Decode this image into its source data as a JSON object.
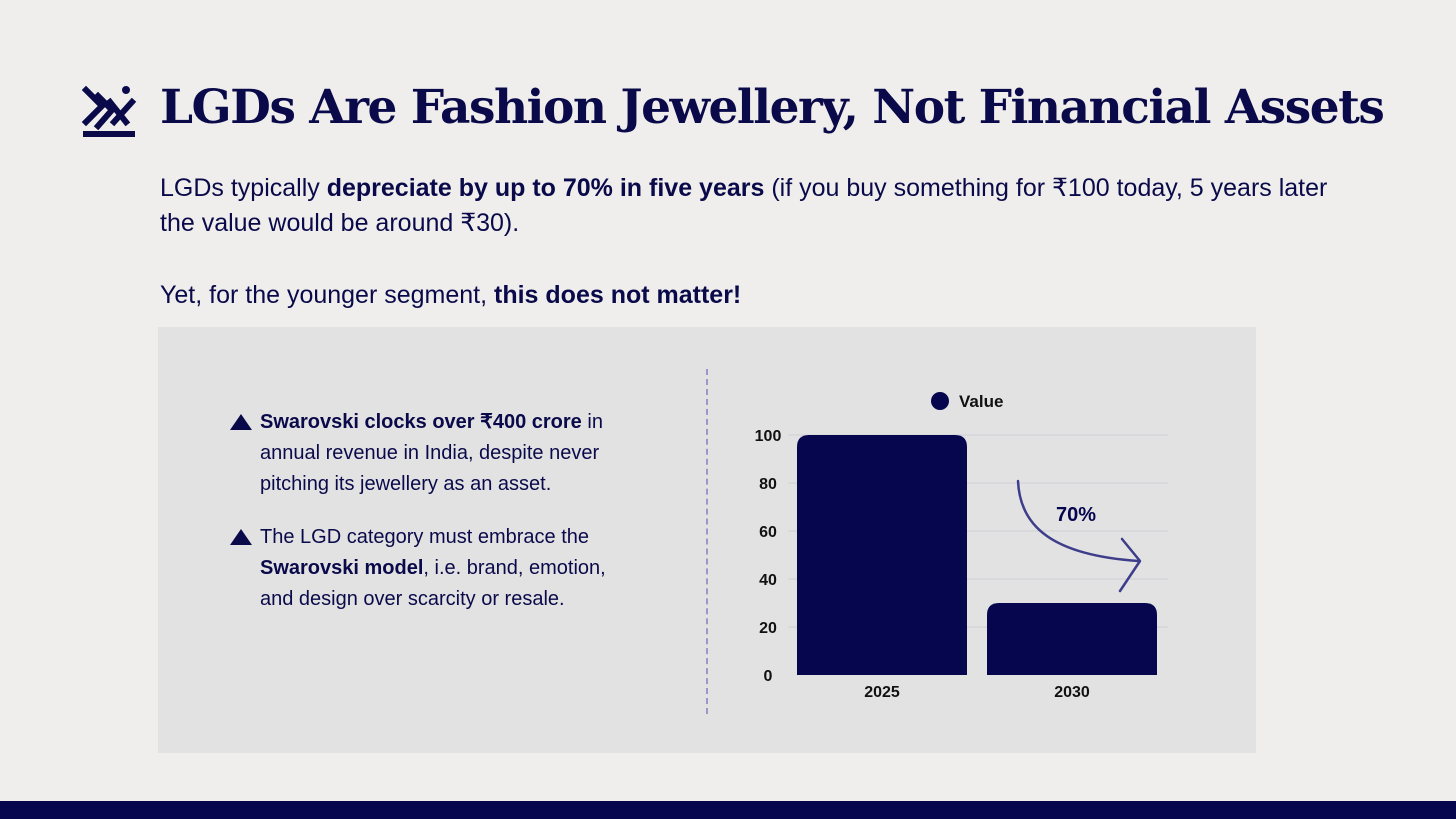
{
  "slide": {
    "title": "LGDs Are Fashion Jewellery, Not Financial Assets",
    "intro": {
      "part1": "LGDs typically ",
      "bold1": "depreciate by up to 70% in five years",
      "part2": " (if you buy something for ₹100 today, 5 years later the value would be around ₹30)."
    },
    "intro2": {
      "part1": "Yet, for the younger segment, ",
      "bold1": "this does not matter!"
    },
    "bullets": [
      {
        "bold": "Swarovski clocks over ₹400 crore",
        "text": " in annual revenue in India, despite never pitching its jewellery as an asset."
      },
      {
        "pre": "The LGD category must embrace the ",
        "bold": "Swarovski model",
        "text": ", i.e. brand, emotion, and design over scarcity or resale."
      }
    ],
    "colors": {
      "primary": "#06064f",
      "background": "#efeeec",
      "panel": "#e3e2e3",
      "arrow": "#3d3d8a"
    },
    "icons": {
      "logo": "brand-logo-icon",
      "bullet": "triangle-bullet-icon"
    }
  },
  "chart_data": {
    "type": "bar",
    "categories": [
      "2025",
      "2030"
    ],
    "series": [
      {
        "name": "Value",
        "values": [
          100,
          30
        ]
      }
    ],
    "ylim": [
      0,
      100
    ],
    "yticks": [
      0,
      20,
      40,
      60,
      80,
      100
    ],
    "grid": true,
    "legend": "top",
    "annotation": "70%"
  }
}
